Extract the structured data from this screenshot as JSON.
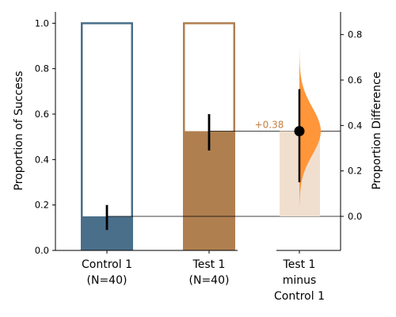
{
  "chart_data": {
    "type": "bar",
    "groups": [
      {
        "name": "Control 1",
        "label_lines": [
          "Control 1",
          "(N=40)"
        ],
        "n": 40,
        "proportion": 0.15,
        "ci": [
          0.09,
          0.2
        ],
        "color": "#4a6f8a"
      },
      {
        "name": "Test 1",
        "label_lines": [
          "Test 1",
          "(N=40)"
        ],
        "n": 40,
        "proportion": 0.525,
        "ci": [
          0.44,
          0.6
        ],
        "color": "#b07f50"
      }
    ],
    "difference": {
      "label_lines": [
        "Test 1",
        "minus",
        "Control 1"
      ],
      "value": 0.375,
      "ci": [
        0.15,
        0.56
      ],
      "annotation": "+0.38",
      "annotation_color": "#c47f43",
      "distribution_color": "#ff9639",
      "shade_color": "#f0dfcf",
      "density_extent": [
        0.05,
        0.75
      ]
    },
    "left_axis": {
      "ylabel": "Proportion of Success",
      "ylim": [
        0,
        1.05
      ],
      "ticks": [
        0.0,
        0.2,
        0.4,
        0.6,
        0.8,
        1.0
      ],
      "tick_labels": [
        "0.0",
        "0.2",
        "0.4",
        "0.6",
        "0.8",
        "1.0"
      ]
    },
    "right_axis": {
      "ylabel": "Proportion Difference",
      "ticks": [
        0.0,
        0.2,
        0.4,
        0.6,
        0.8
      ],
      "tick_labels": [
        "0.0",
        "0.2",
        "0.4",
        "0.6",
        "0.8"
      ]
    },
    "grid": false
  }
}
